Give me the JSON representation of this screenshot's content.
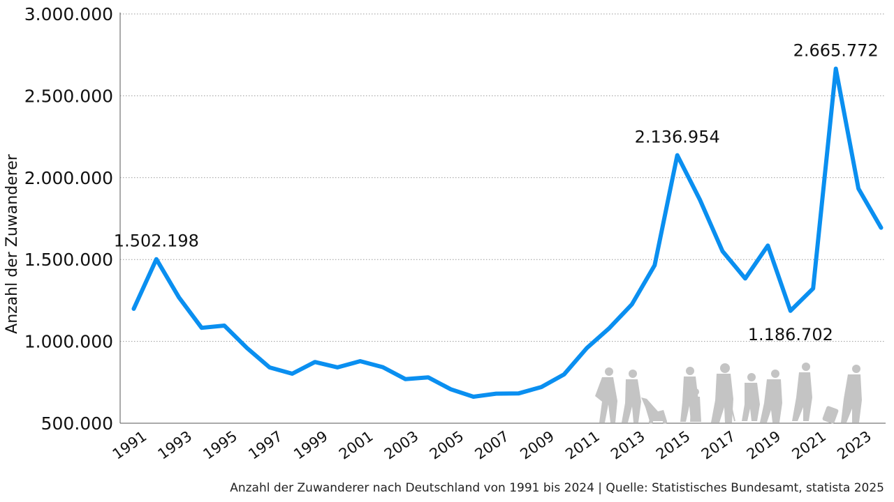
{
  "chart_data": {
    "type": "line",
    "ylabel": "Anzahl der Zuwanderer",
    "xlabel": "",
    "ylim": [
      500000,
      3000000
    ],
    "yticks": [
      500000,
      1000000,
      1500000,
      2000000,
      2500000,
      3000000
    ],
    "ytick_labels": [
      "500.000",
      "1.000.000",
      "1.500.000",
      "2.000.000",
      "2.500.000",
      "3.000.000"
    ],
    "xtick_labels": [
      "1991",
      "1993",
      "1995",
      "1997",
      "1999",
      "2001",
      "2003",
      "2005",
      "2007",
      "2009",
      "2011",
      "2013",
      "2015",
      "2017",
      "2019",
      "2021",
      "2023"
    ],
    "grid": "horizontal-dotted",
    "color": "#0a8ff0",
    "x": [
      1991,
      1992,
      1993,
      1994,
      1995,
      1996,
      1997,
      1998,
      1999,
      2000,
      2001,
      2002,
      2003,
      2004,
      2005,
      2006,
      2007,
      2008,
      2009,
      2010,
      2011,
      2012,
      2013,
      2014,
      2015,
      2016,
      2017,
      2018,
      2019,
      2020,
      2021,
      2022,
      2023,
      2024
    ],
    "values": [
      1198978,
      1502198,
      1268004,
      1082553,
      1096048,
      959691,
      840633,
      802456,
      874023,
      841158,
      879217,
      842543,
      768975,
      780175,
      707352,
      661855,
      680766,
      682146,
      721014,
      798282,
      958299,
      1080936,
      1226493,
      1464724,
      2136954,
      1865122,
      1550721,
      1384000,
      1585109,
      1186702,
      1323466,
      2665772,
      1933000,
      1694000
    ],
    "annotations": [
      {
        "x": 1992,
        "label": "1.502.198"
      },
      {
        "x": 2015,
        "label": "2.136.954"
      },
      {
        "x": 2020,
        "label": "1.186.702"
      },
      {
        "x": 2022,
        "label": "2.665.772"
      }
    ],
    "caption": "Anzahl der Zuwanderer nach Deutschland von 1991 bis 2024 | Quelle: Statistisches Bundesamt, statista 2025"
  }
}
